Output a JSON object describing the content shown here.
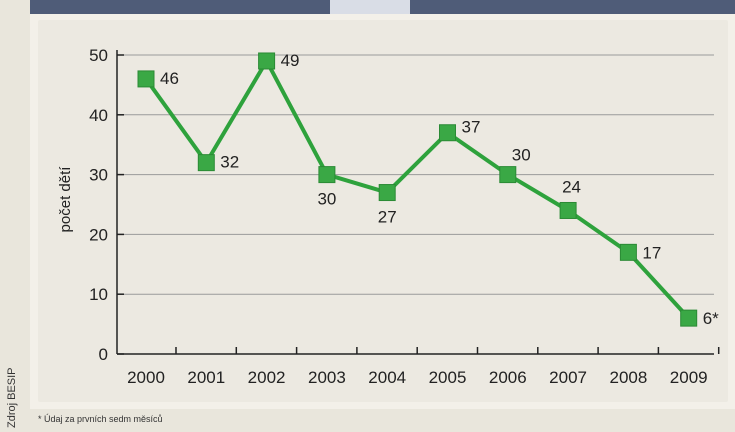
{
  "source": "Zdroj BESIP",
  "footnote": "* Údaj za prvních sedm měsíců",
  "colors": {
    "line": "#2ea23c",
    "marker": "#3aa845",
    "axis": "#222222",
    "grid": "#9a9a9a"
  },
  "chart_data": {
    "type": "line",
    "title": "",
    "ylabel": "počet dětí",
    "xlabel": "",
    "ylim": [
      0,
      50
    ],
    "yticks": [
      0,
      10,
      20,
      30,
      40,
      50
    ],
    "grid": true,
    "categories": [
      "2000",
      "2001",
      "2002",
      "2003",
      "2004",
      "2005",
      "2006",
      "2007",
      "2008",
      "2009"
    ],
    "values": [
      46,
      32,
      49,
      30,
      27,
      37,
      30,
      24,
      17,
      6
    ],
    "value_labels": [
      "46",
      "32",
      "49",
      "30",
      "27",
      "37",
      "30",
      "24",
      "17",
      "6*"
    ]
  }
}
